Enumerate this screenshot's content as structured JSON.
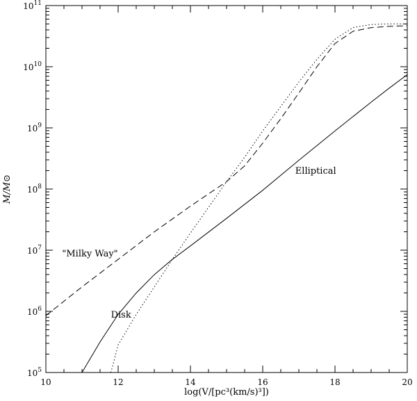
{
  "chart_data": {
    "type": "line",
    "title": "",
    "xlabel": "log(V/[pc³(km/s)³])",
    "ylabel": "M/M⊙",
    "xlim": [
      10,
      20
    ],
    "ylim_log10": [
      5,
      11
    ],
    "y_scale": "log",
    "grid": false,
    "legend": "none",
    "x_ticks": [
      10,
      12,
      14,
      16,
      18,
      20
    ],
    "x_tick_labels": [
      "10",
      "12",
      "14",
      "16",
      "18",
      "20"
    ],
    "y_ticks_log10": [
      5,
      6,
      7,
      8,
      9,
      10,
      11
    ],
    "y_tick_base": "10",
    "y_tick_exponents": [
      "5",
      "6",
      "7",
      "8",
      "9",
      "10",
      "11"
    ],
    "series": [
      {
        "name": "Elliptical",
        "style": "solid",
        "x": [
          11.0,
          11.5,
          12.0,
          12.5,
          13.0,
          13.5,
          14.0,
          15.0,
          16.0,
          17.0,
          18.0,
          19.0,
          19.5,
          20.0
        ],
        "log10_y": [
          5.0,
          5.5,
          5.95,
          6.3,
          6.6,
          6.85,
          7.07,
          7.52,
          7.98,
          8.47,
          8.95,
          9.42,
          9.65,
          9.87
        ]
      },
      {
        "name": "Milky Way",
        "style": "dashed",
        "x": [
          10.0,
          11.0,
          12.0,
          13.0,
          14.0,
          15.0,
          15.5,
          16.0,
          16.5,
          17.0,
          17.5,
          18.0,
          18.5,
          19.0,
          19.5,
          20.0
        ],
        "log10_y": [
          5.93,
          6.4,
          6.85,
          7.3,
          7.72,
          8.12,
          8.38,
          8.75,
          9.15,
          9.57,
          10.0,
          10.38,
          10.58,
          10.64,
          10.66,
          10.67
        ]
      },
      {
        "name": "Disk",
        "style": "dotted",
        "x": [
          11.8,
          12.0,
          12.5,
          13.0,
          13.5,
          14.0,
          14.5,
          15.0,
          15.5,
          16.0,
          16.5,
          17.0,
          17.5,
          18.0,
          18.5,
          19.0,
          19.5,
          20.0
        ],
        "log10_y": [
          5.0,
          5.45,
          5.95,
          6.4,
          6.85,
          7.28,
          7.7,
          8.12,
          8.52,
          8.95,
          9.35,
          9.75,
          10.12,
          10.45,
          10.64,
          10.69,
          10.7,
          10.7
        ]
      }
    ],
    "annotations": [
      {
        "text": "Elliptical",
        "x": 16.9,
        "log10_y": 8.25
      },
      {
        "text": "\"Milky Way\"",
        "x": 10.45,
        "log10_y": 6.9
      },
      {
        "text": "Disk",
        "x": 11.8,
        "log10_y": 5.9
      }
    ]
  }
}
